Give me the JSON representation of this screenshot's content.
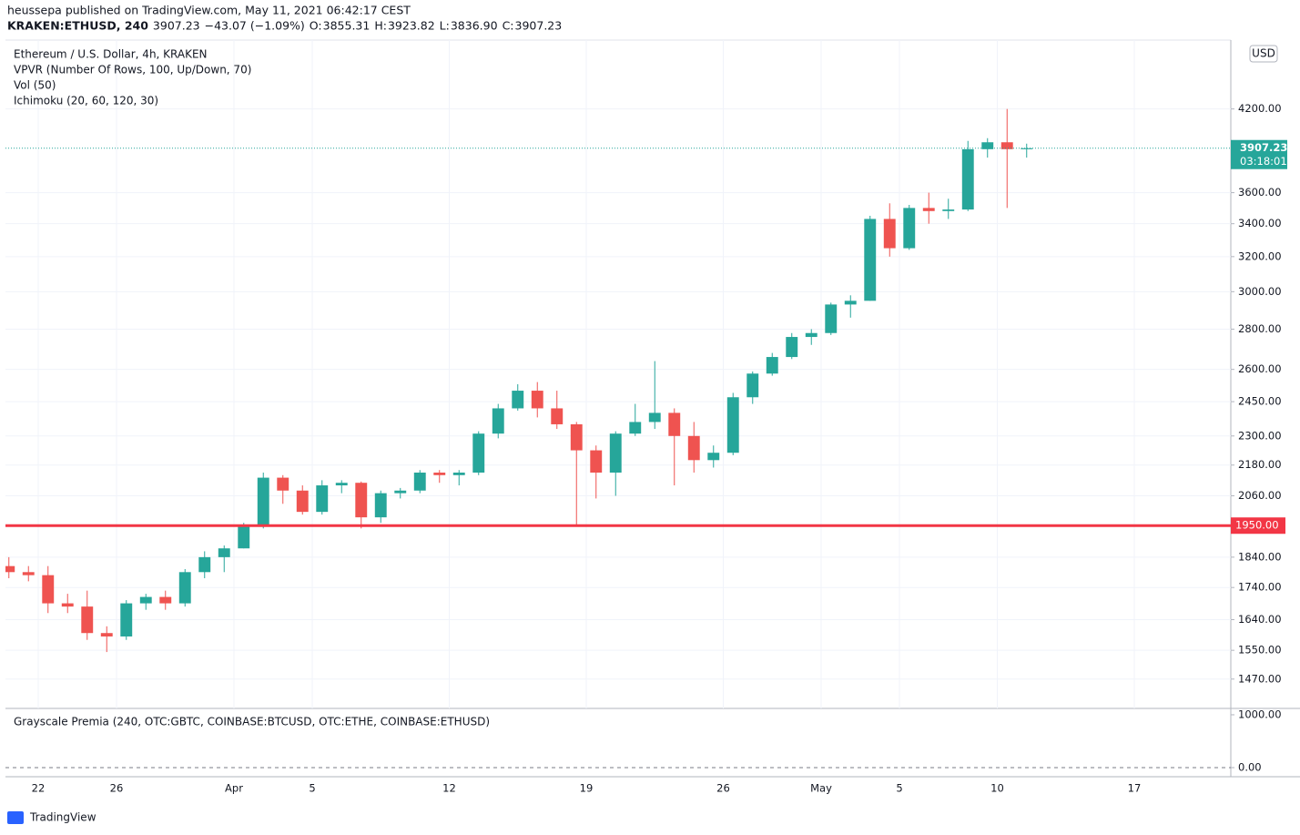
{
  "header": {
    "publisher": "heussepa published on TradingView.com, May 11, 2021 06:42:17 CEST",
    "symbol": "KRAKEN:ETHUSD, 240",
    "last": "3907.23",
    "change": "−43.07 (−1.09%)",
    "ohlc": [
      {
        "key": "O:",
        "value": "3855.31"
      },
      {
        "key": "H:",
        "value": "3923.82"
      },
      {
        "key": "L:",
        "value": "3836.90"
      },
      {
        "key": "C:",
        "value": "3907.23"
      }
    ],
    "legend": [
      "Ethereum / U.S. Dollar, 4h, KRAKEN",
      "VPVR (Number Of Rows, 100, Up/Down, 70)",
      "Vol (50)",
      "Ichimoku (20, 60, 120, 30)"
    ],
    "currency": "USD",
    "footer": "TradingView"
  },
  "chart_data": {
    "type": "candlestick",
    "log_scale": true,
    "up_color": "#26a69a",
    "down_color": "#ef5350",
    "x": [
      "2021-03-20",
      "2021-03-21",
      "2021-03-22",
      "2021-03-23",
      "2021-03-24",
      "2021-03-25",
      "2021-03-26",
      "2021-03-27",
      "2021-03-28",
      "2021-03-29",
      "2021-03-30",
      "2021-03-31",
      "2021-04-01",
      "2021-04-02",
      "2021-04-03",
      "2021-04-04",
      "2021-04-05",
      "2021-04-06",
      "2021-04-07",
      "2021-04-08",
      "2021-04-09",
      "2021-04-10",
      "2021-04-11",
      "2021-04-12",
      "2021-04-13",
      "2021-04-14",
      "2021-04-15",
      "2021-04-16",
      "2021-04-17",
      "2021-04-18",
      "2021-04-19",
      "2021-04-20",
      "2021-04-21",
      "2021-04-22",
      "2021-04-23",
      "2021-04-24",
      "2021-04-25",
      "2021-04-26",
      "2021-04-27",
      "2021-04-28",
      "2021-04-29",
      "2021-04-30",
      "2021-05-01",
      "2021-05-02",
      "2021-05-03",
      "2021-05-04",
      "2021-05-05",
      "2021-05-06",
      "2021-05-07",
      "2021-05-08",
      "2021-05-09",
      "2021-05-10",
      "2021-05-11"
    ],
    "open": [
      1810,
      1790,
      1780,
      1690,
      1680,
      1600,
      1590,
      1690,
      1710,
      1690,
      1790,
      1840,
      1870,
      1950,
      2130,
      2080,
      2000,
      2100,
      2110,
      1980,
      2070,
      2080,
      2150,
      2140,
      2150,
      2310,
      2420,
      2500,
      2420,
      2350,
      2240,
      2150,
      2310,
      2360,
      2400,
      2300,
      2200,
      2230,
      2470,
      2580,
      2660,
      2760,
      2780,
      2930,
      2950,
      3430,
      3250,
      3500,
      3480,
      3490,
      3900,
      3950,
      3900
    ],
    "high": [
      1840,
      1810,
      1810,
      1720,
      1730,
      1620,
      1700,
      1720,
      1730,
      1800,
      1860,
      1880,
      1960,
      2150,
      2140,
      2100,
      2120,
      2120,
      2115,
      2080,
      2090,
      2160,
      2160,
      2160,
      2320,
      2440,
      2530,
      2540,
      2500,
      2360,
      2260,
      2320,
      2440,
      2640,
      2420,
      2360,
      2260,
      2490,
      2590,
      2680,
      2780,
      2800,
      2940,
      2980,
      3450,
      3530,
      3520,
      3600,
      3560,
      3960,
      3980,
      4200,
      3940
    ],
    "low": [
      1770,
      1760,
      1660,
      1660,
      1580,
      1545,
      1580,
      1670,
      1670,
      1680,
      1770,
      1790,
      1870,
      1940,
      2030,
      1990,
      1990,
      2070,
      1940,
      1960,
      2050,
      2070,
      2110,
      2100,
      2140,
      2290,
      2410,
      2380,
      2330,
      1950,
      2050,
      2060,
      2300,
      2330,
      2100,
      2150,
      2170,
      2220,
      2440,
      2570,
      2650,
      2720,
      2770,
      2860,
      2950,
      3200,
      3240,
      3400,
      3430,
      3480,
      3840,
      3500,
      3840
    ],
    "close": [
      1790,
      1780,
      1690,
      1680,
      1600,
      1590,
      1690,
      1710,
      1690,
      1790,
      1840,
      1870,
      1950,
      2130,
      2080,
      2000,
      2100,
      2110,
      1980,
      2070,
      2080,
      2150,
      2140,
      2150,
      2310,
      2420,
      2500,
      2420,
      2350,
      2240,
      2150,
      2310,
      2360,
      2400,
      2300,
      2200,
      2230,
      2470,
      2580,
      2660,
      2760,
      2780,
      2930,
      2950,
      3430,
      3250,
      3500,
      3480,
      3490,
      3900,
      3950,
      3900,
      3907.23
    ],
    "xlim": [
      "2021-03-20",
      "2021-05-22"
    ],
    "xticks": [
      {
        "value": "2021-03-22",
        "label": "22"
      },
      {
        "value": "2021-03-26",
        "label": "26"
      },
      {
        "value": "2021-04-01",
        "label": "Apr"
      },
      {
        "value": "2021-04-05",
        "label": "5"
      },
      {
        "value": "2021-04-12",
        "label": "12"
      },
      {
        "value": "2021-04-19",
        "label": "19"
      },
      {
        "value": "2021-04-26",
        "label": "26"
      },
      {
        "value": "2021-05-01",
        "label": "May"
      },
      {
        "value": "2021-05-05",
        "label": "5"
      },
      {
        "value": "2021-05-10",
        "label": "10"
      },
      {
        "value": "2021-05-17",
        "label": "17"
      }
    ],
    "ylim": [
      1395,
      4760
    ],
    "yticks": [
      {
        "value": 4200,
        "label": "4200.00"
      },
      {
        "value": 3600,
        "label": "3600.00"
      },
      {
        "value": 3400,
        "label": "3400.00"
      },
      {
        "value": 3200,
        "label": "3200.00"
      },
      {
        "value": 3000,
        "label": "3000.00"
      },
      {
        "value": 2800,
        "label": "2800.00"
      },
      {
        "value": 2600,
        "label": "2600.00"
      },
      {
        "value": 2450,
        "label": "2450.00"
      },
      {
        "value": 2300,
        "label": "2300.00"
      },
      {
        "value": 2180,
        "label": "2180.00"
      },
      {
        "value": 2060,
        "label": "2060.00"
      },
      {
        "value": 1840,
        "label": "1840.00"
      },
      {
        "value": 1740,
        "label": "1740.00"
      },
      {
        "value": 1640,
        "label": "1640.00"
      },
      {
        "value": 1550,
        "label": "1550.00"
      },
      {
        "value": 1470,
        "label": "1470.00"
      }
    ],
    "last_price": 3907.23,
    "countdown": "03:18:01",
    "hline": {
      "value": 1950,
      "label": "1950.00",
      "color": "#f23645"
    },
    "indicator": {
      "title": "Grayscale Premia (240, OTC:GBTC, COINBASE:BTCUSD, OTC:ETHE, COINBASE:ETHUSD)",
      "ylim": [
        -155,
        1120
      ],
      "yticks": [
        {
          "value": 1000,
          "label": "1000.00"
        },
        {
          "value": 0,
          "label": "0.00"
        }
      ]
    }
  }
}
